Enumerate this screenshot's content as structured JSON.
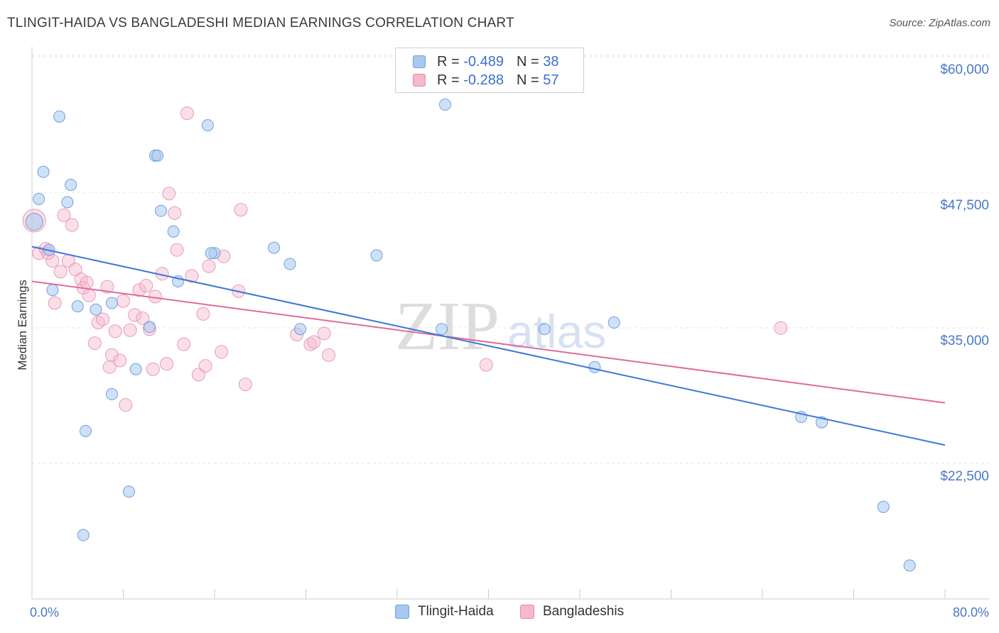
{
  "header": {
    "title": "TLINGIT-HAIDA VS BANGLADESHI MEDIAN EARNINGS CORRELATION CHART",
    "source": "Source: ZipAtlas.com"
  },
  "watermark": {
    "zip": "ZIP",
    "atlas": "atlas"
  },
  "legend": {
    "rows": [
      {
        "r_label": "R =",
        "r_value": "-0.489",
        "n_label": "N =",
        "n_value": "38",
        "color": "#a8c8f0",
        "border": "#6f9fde"
      },
      {
        "r_label": "R =",
        "r_value": "-0.288",
        "n_label": "N =",
        "n_value": "57",
        "color": "#f7b8cc",
        "border": "#e08aa6"
      }
    ]
  },
  "bottom_legend": [
    {
      "label": "Tlingit-Haida",
      "color": "#a8c8f0",
      "border": "#6f9fde"
    },
    {
      "label": "Bangladeshis",
      "color": "#f7b8cc",
      "border": "#e08aa6"
    }
  ],
  "chart_data": {
    "type": "scatter",
    "title": "TLINGIT-HAIDA VS BANGLADESHI MEDIAN EARNINGS CORRELATION CHART",
    "xlabel": "",
    "ylabel": "Median Earnings",
    "xlim": [
      0,
      80
    ],
    "ylim": [
      12000,
      62000
    ],
    "x_tick_labels": [
      "0.0%",
      "80.0%"
    ],
    "y_ticks": [
      22500,
      35000,
      47500,
      60000
    ],
    "y_tick_labels": [
      "$22,500",
      "$35,000",
      "$47,500",
      "$60,000"
    ],
    "grid": true,
    "legend_position": "top-center",
    "colors": {
      "tlingit": "#3b78d8",
      "bangladeshi": "#e06c98"
    },
    "series": [
      {
        "name": "Tlingit-Haida",
        "trend": {
          "x": [
            0,
            80
          ],
          "y": [
            43600,
            25300
          ]
        },
        "points": [
          [
            0.2,
            45900
          ],
          [
            1.0,
            50500
          ],
          [
            0.6,
            48000
          ],
          [
            2.4,
            55600
          ],
          [
            3.1,
            47700
          ],
          [
            3.4,
            49300
          ],
          [
            1.5,
            43300
          ],
          [
            1.8,
            39600
          ],
          [
            4.0,
            38100
          ],
          [
            5.6,
            37800
          ],
          [
            7.0,
            38400
          ],
          [
            4.5,
            17000
          ],
          [
            4.7,
            26600
          ],
          [
            7.0,
            30000
          ],
          [
            8.5,
            21000
          ],
          [
            9.1,
            32300
          ],
          [
            10.3,
            36200
          ],
          [
            10.8,
            52000
          ],
          [
            11.0,
            52000
          ],
          [
            11.3,
            46900
          ],
          [
            12.4,
            45000
          ],
          [
            12.8,
            40400
          ],
          [
            15.4,
            54800
          ],
          [
            16.0,
            43000
          ],
          [
            21.2,
            43500
          ],
          [
            22.6,
            42000
          ],
          [
            23.5,
            36000
          ],
          [
            30.2,
            42800
          ],
          [
            36.2,
            56700
          ],
          [
            35.9,
            36000
          ],
          [
            44.9,
            36000
          ],
          [
            49.3,
            32500
          ],
          [
            51.0,
            36600
          ],
          [
            67.4,
            27900
          ],
          [
            69.2,
            27400
          ],
          [
            74.6,
            19600
          ],
          [
            76.9,
            14200
          ],
          [
            15.7,
            43000
          ]
        ]
      },
      {
        "name": "Bangladeshis",
        "trend": {
          "x": [
            0,
            80
          ],
          "y": [
            40400,
            29200
          ]
        },
        "points": [
          [
            0.2,
            46000
          ],
          [
            0.6,
            43000
          ],
          [
            1.2,
            43400
          ],
          [
            1.4,
            43000
          ],
          [
            1.8,
            42300
          ],
          [
            2.0,
            38400
          ],
          [
            2.5,
            41300
          ],
          [
            2.8,
            46500
          ],
          [
            3.2,
            42300
          ],
          [
            3.5,
            45600
          ],
          [
            3.8,
            41500
          ],
          [
            4.3,
            40600
          ],
          [
            4.5,
            39800
          ],
          [
            4.8,
            40300
          ],
          [
            5.0,
            39100
          ],
          [
            5.5,
            34700
          ],
          [
            5.8,
            36600
          ],
          [
            6.2,
            36900
          ],
          [
            6.6,
            39900
          ],
          [
            6.8,
            32500
          ],
          [
            7.0,
            33600
          ],
          [
            7.3,
            35800
          ],
          [
            7.7,
            33100
          ],
          [
            8.0,
            38600
          ],
          [
            8.2,
            29000
          ],
          [
            8.6,
            35900
          ],
          [
            9.0,
            37300
          ],
          [
            9.4,
            39600
          ],
          [
            9.7,
            37000
          ],
          [
            10.0,
            40000
          ],
          [
            10.3,
            36000
          ],
          [
            10.6,
            32300
          ],
          [
            10.8,
            39000
          ],
          [
            11.4,
            41100
          ],
          [
            11.8,
            32800
          ],
          [
            12.0,
            48500
          ],
          [
            12.5,
            46700
          ],
          [
            12.7,
            43300
          ],
          [
            13.3,
            34600
          ],
          [
            13.6,
            55900
          ],
          [
            14.0,
            40900
          ],
          [
            14.6,
            31800
          ],
          [
            15.0,
            37400
          ],
          [
            15.2,
            32600
          ],
          [
            15.5,
            41800
          ],
          [
            16.6,
            33900
          ],
          [
            16.8,
            42700
          ],
          [
            18.1,
            39500
          ],
          [
            18.3,
            47000
          ],
          [
            18.7,
            30900
          ],
          [
            24.4,
            34600
          ],
          [
            24.7,
            34800
          ],
          [
            25.6,
            35600
          ],
          [
            26.0,
            33600
          ],
          [
            39.8,
            32700
          ],
          [
            65.6,
            36100
          ],
          [
            23.2,
            35500
          ]
        ]
      }
    ]
  }
}
